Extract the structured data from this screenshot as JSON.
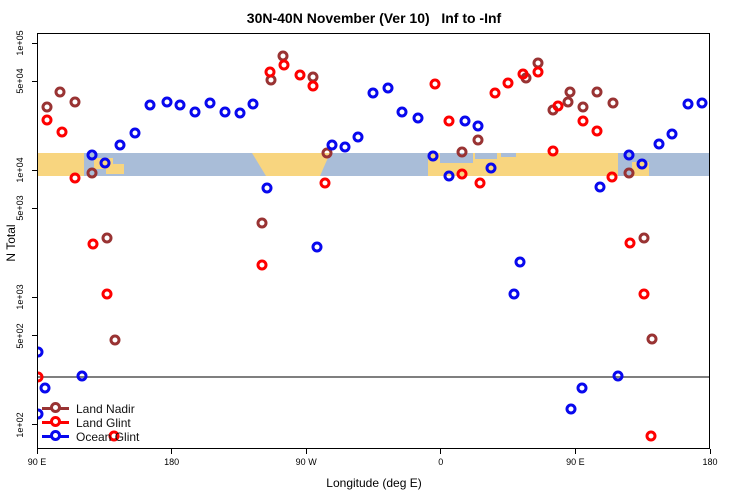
{
  "title": "30N-40N November (Ver 10)   Inf to -Inf",
  "axes": {
    "y_label": "N Total",
    "x_label": "Longitude (deg E)",
    "y_ticks": [
      {
        "label": "1e+05",
        "value": 100000
      },
      {
        "label": "5e+04",
        "value": 50000
      },
      {
        "label": "1e+04",
        "value": 10000
      },
      {
        "label": "5e+03",
        "value": 5000
      },
      {
        "label": "1e+03",
        "value": 1000
      },
      {
        "label": "5e+02",
        "value": 500
      },
      {
        "label": "1e+02",
        "value": 100
      }
    ],
    "x_ticks": [
      {
        "label": "90 E",
        "deg": 90
      },
      {
        "label": "180",
        "deg": 180
      },
      {
        "label": "90 W",
        "deg": 270
      },
      {
        "label": "0",
        "deg": 360
      },
      {
        "label": "90 E",
        "deg": 450
      },
      {
        "label": "180",
        "deg": 540
      }
    ]
  },
  "legend": [
    {
      "name": "Land Nadir",
      "color": "#993333"
    },
    {
      "name": "Land Glint",
      "color": "#fe0000"
    },
    {
      "name": "Ocean Glint",
      "color": "#0808ee"
    }
  ],
  "threshold_line": {
    "value": 240,
    "color": "#7f7f7f"
  },
  "map_band": {
    "ocean_color": "#a9bdd8",
    "land_color": "#f8d57f",
    "land_rects": [
      [
        37,
        84,
        0,
        23
      ],
      [
        94,
        113,
        5,
        16
      ],
      [
        106,
        124,
        11,
        21
      ],
      [
        428,
        618,
        0,
        23
      ],
      [
        632,
        649,
        9,
        23
      ]
    ],
    "na_polygon": [
      [
        252,
        0
      ],
      [
        330,
        0
      ],
      [
        320,
        23
      ],
      [
        266,
        23
      ]
    ],
    "ocean_cutouts": [
      [
        440,
        473,
        0,
        10
      ],
      [
        475,
        497,
        0,
        6
      ],
      [
        501,
        516,
        0,
        4
      ]
    ]
  },
  "chart_data": {
    "type": "scatter",
    "title": "30N-40N November (Ver 10)   Inf to -Inf",
    "xlabel": "Longitude (deg E)",
    "ylabel": "N Total",
    "x_axis": {
      "min": 90,
      "max": 540,
      "wraps_longitude": true
    },
    "y_axis": {
      "scale": "log",
      "min": 64,
      "max": 120000
    },
    "threshold_value": 240,
    "series": [
      {
        "name": "Land Nadir",
        "color": "#993333",
        "points": [
          [
            96.7,
            31400
          ],
          [
            105.4,
            41200
          ],
          [
            115.4,
            34400
          ],
          [
            126.8,
            9500
          ],
          [
            136.8,
            2930
          ],
          [
            142.2,
            465
          ],
          [
            240.4,
            3850
          ],
          [
            246.5,
            51200
          ],
          [
            254.5,
            79000
          ],
          [
            274.6,
            54200
          ],
          [
            283.9,
            13700
          ],
          [
            374.2,
            13900
          ],
          [
            384.9,
            17300
          ],
          [
            417,
            53200
          ],
          [
            425,
            69600
          ],
          [
            435,
            29700
          ],
          [
            445,
            34400
          ],
          [
            446.4,
            41200
          ],
          [
            455.1,
            31400
          ],
          [
            464.5,
            41200
          ],
          [
            475.2,
            33700
          ],
          [
            485.9,
            9500
          ],
          [
            495.9,
            2930
          ],
          [
            501.3,
            470
          ]
        ]
      },
      {
        "name": "Land Glint",
        "color": "#fe0000",
        "points": [
          [
            90.7,
            237
          ],
          [
            96.7,
            24800
          ],
          [
            106.7,
            20000
          ],
          [
            115.4,
            8700
          ],
          [
            127.4,
            2630
          ],
          [
            136.8,
            1060
          ],
          [
            141.5,
            81
          ],
          [
            240.4,
            1800
          ],
          [
            245.8,
            59100
          ],
          [
            255.2,
            67100
          ],
          [
            265.9,
            56000
          ],
          [
            274.6,
            45900
          ],
          [
            282.6,
            7900
          ],
          [
            356.1,
            47600
          ],
          [
            365.5,
            24400
          ],
          [
            374.2,
            9300
          ],
          [
            386.2,
            7900
          ],
          [
            396.2,
            40500
          ],
          [
            404.9,
            48500
          ],
          [
            415,
            57000
          ],
          [
            425,
            59100
          ],
          [
            435,
            14200
          ],
          [
            438.4,
            32000
          ],
          [
            455.1,
            24400
          ],
          [
            464.5,
            20300
          ],
          [
            474.5,
            8850
          ],
          [
            486.5,
            2680
          ],
          [
            495.9,
            1060
          ],
          [
            500.6,
            81
          ]
        ]
      },
      {
        "name": "Ocean Glint",
        "color": "#0808ee",
        "points": [
          [
            90.5,
            372
          ],
          [
            91,
            121
          ],
          [
            95.4,
            194
          ],
          [
            120.1,
            241
          ],
          [
            126.8,
            13200
          ],
          [
            135.5,
            11400
          ],
          [
            145.5,
            15800
          ],
          [
            155.5,
            19600
          ],
          [
            165.5,
            32500
          ],
          [
            176.9,
            34400
          ],
          [
            185.6,
            32500
          ],
          [
            195.6,
            28600
          ],
          [
            205.7,
            33700
          ],
          [
            215.7,
            28600
          ],
          [
            225.7,
            28200
          ],
          [
            234.4,
            33100
          ],
          [
            243.8,
            7240
          ],
          [
            277.2,
            2490
          ],
          [
            287.3,
            15800
          ],
          [
            296,
            15200
          ],
          [
            304.7,
            18200
          ],
          [
            314.7,
            40500
          ],
          [
            324.7,
            44300
          ],
          [
            334.1,
            28600
          ],
          [
            344.8,
            25700
          ],
          [
            354.8,
            12900
          ],
          [
            365.5,
            9000
          ],
          [
            376.2,
            24400
          ],
          [
            384.9,
            22300
          ],
          [
            393.6,
            10400
          ],
          [
            409,
            1060
          ],
          [
            413,
            1900
          ],
          [
            447,
            133
          ],
          [
            454.4,
            194
          ],
          [
            466.5,
            7380
          ],
          [
            478.6,
            241
          ],
          [
            485.9,
            13200
          ],
          [
            494.6,
            11200
          ],
          [
            506,
            16100
          ],
          [
            514.7,
            19300
          ],
          [
            525.4,
            33100
          ],
          [
            534.8,
            33700
          ]
        ]
      }
    ]
  }
}
